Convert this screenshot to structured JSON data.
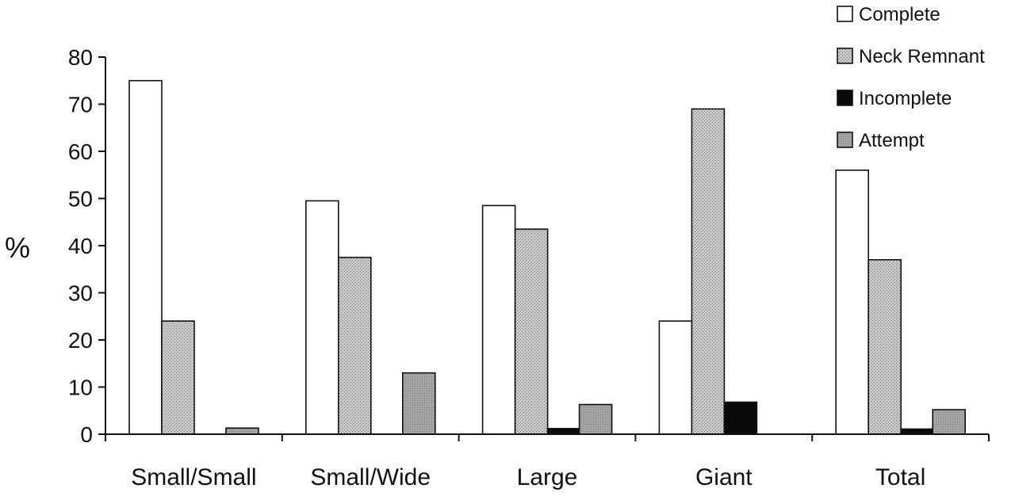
{
  "chart_data": {
    "type": "bar",
    "ylabel": "%",
    "ylim": [
      0,
      80
    ],
    "yticks": [
      0,
      10,
      20,
      30,
      40,
      50,
      60,
      70,
      80
    ],
    "categories": [
      "Small/Small",
      "Small/Wide",
      "Large",
      "Giant",
      "Total"
    ],
    "series": [
      {
        "name": "Complete",
        "values": [
          75,
          49.5,
          48.5,
          24,
          56
        ],
        "fill": "white"
      },
      {
        "name": "Neck Remnant",
        "values": [
          24,
          37.5,
          43.5,
          69,
          37
        ],
        "fill": "stipple"
      },
      {
        "name": "Incomplete",
        "values": [
          0,
          0,
          1.2,
          6.8,
          1.1
        ],
        "fill": "black"
      },
      {
        "name": "Attempt",
        "values": [
          1.3,
          13,
          6.3,
          0,
          5.2
        ],
        "fill": "gray"
      }
    ],
    "legend_position": "top-right",
    "colors": {
      "complete": "#ffffff",
      "neck_remnant": "#b9b9b9",
      "incomplete": "#0a0a0a",
      "attempt": "#9a9a9a"
    }
  }
}
